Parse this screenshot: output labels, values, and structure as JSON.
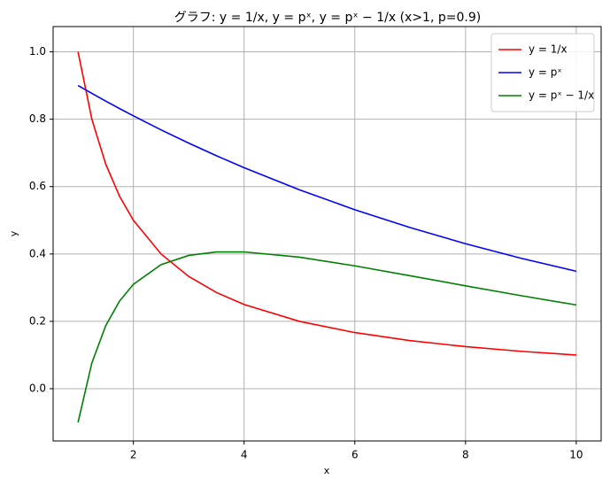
{
  "chart_data": {
    "type": "line",
    "title": "グラフ: y = 1/x, y = pˣ, y = pˣ − 1/x  (x>1, p=0.9)",
    "x_label": "x",
    "y_label": "y",
    "x": [
      1,
      1.25,
      1.5,
      1.75,
      2,
      2.5,
      3,
      3.5,
      4,
      5,
      6,
      7,
      8,
      9,
      10
    ],
    "series": [
      {
        "name": "y = 1/x",
        "color": "#ff0000",
        "values": [
          1,
          0.8,
          0.6667,
          0.5714,
          0.5,
          0.4,
          0.3333,
          0.2857,
          0.25,
          0.2,
          0.1667,
          0.1429,
          0.125,
          0.1111,
          0.1
        ]
      },
      {
        "name": "y = pˣ",
        "color": "#0000ff",
        "values": [
          0.9,
          0.8766,
          0.8538,
          0.8316,
          0.81,
          0.7684,
          0.729,
          0.6916,
          0.6561,
          0.5905,
          0.5314,
          0.4783,
          0.4305,
          0.3874,
          0.3487
        ]
      },
      {
        "name": "y = pˣ − 1/x",
        "color": "#008000",
        "values": [
          -0.1,
          0.0766,
          0.1871,
          0.2602,
          0.31,
          0.3684,
          0.3957,
          0.4059,
          0.4061,
          0.3905,
          0.3647,
          0.3354,
          0.3055,
          0.2763,
          0.2487
        ]
      }
    ],
    "xlim": [
      0.55,
      10.45
    ],
    "ylim": [
      -0.155,
      1.075
    ],
    "xticks": [
      2,
      4,
      6,
      8,
      10
    ],
    "yticks": [
      {
        "value": 0,
        "label": "0.0"
      },
      {
        "value": 0.2,
        "label": "0.2"
      },
      {
        "value": 0.4,
        "label": "0.4"
      },
      {
        "value": 0.6,
        "label": "0.6"
      },
      {
        "value": 0.8,
        "label": "0.8"
      },
      {
        "value": 1,
        "label": "1.0"
      }
    ],
    "grid": true,
    "legend": "upper right"
  }
}
